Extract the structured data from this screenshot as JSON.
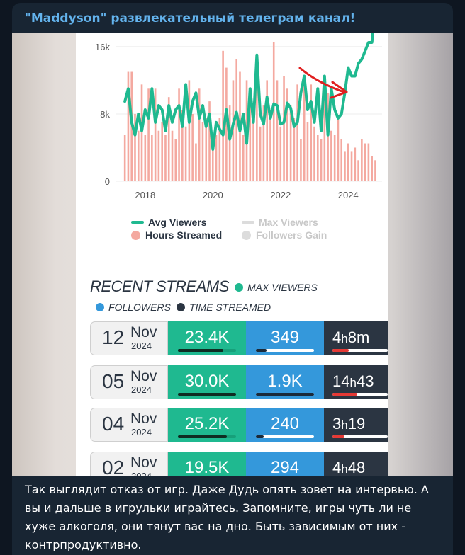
{
  "channel": {
    "title": "\"Maddyson\" развлекательный телеграм канал!"
  },
  "chart_data": {
    "type": "line",
    "title": "",
    "xlabel": "",
    "ylabel": "",
    "y_ticks": [
      "0",
      "8k",
      "16k"
    ],
    "x_ticks": [
      "2018",
      "2020",
      "2022",
      "2024"
    ],
    "ylim": [
      0,
      17000
    ],
    "xlim": [
      2017.25,
      2025.0
    ],
    "legend": {
      "avg_viewers": "Avg Viewers",
      "max_viewers": "Max Viewers",
      "hours_streamed": "Hours Streamed",
      "followers_gain": "Followers Gain"
    },
    "colors": {
      "avg_viewers": "#1fb990",
      "max_viewers": "#d9d9d9",
      "hours_streamed": "#f4a9a0",
      "followers_gain": "#d9d9d9",
      "arrow": "#e02020"
    },
    "series": [
      {
        "name": "Avg Viewers",
        "x": [
          2017.4,
          2017.5,
          2017.6,
          2017.7,
          2017.8,
          2017.9,
          2018.0,
          2018.1,
          2018.2,
          2018.3,
          2018.4,
          2018.5,
          2018.6,
          2018.7,
          2018.8,
          2018.9,
          2019.0,
          2019.1,
          2019.2,
          2019.3,
          2019.4,
          2019.5,
          2019.6,
          2019.7,
          2019.8,
          2019.9,
          2020.0,
          2020.1,
          2020.2,
          2020.3,
          2020.4,
          2020.5,
          2020.6,
          2020.7,
          2020.8,
          2020.9,
          2021.0,
          2021.1,
          2021.2,
          2021.3,
          2021.4,
          2021.5,
          2021.6,
          2021.7,
          2021.8,
          2021.9,
          2022.0,
          2022.1,
          2022.2,
          2022.3,
          2022.4,
          2022.5,
          2022.6,
          2022.7,
          2022.8,
          2022.9,
          2023.0,
          2023.1,
          2023.2,
          2023.3,
          2023.4,
          2023.5,
          2023.6,
          2023.7,
          2023.8,
          2023.9,
          2024.0,
          2024.1,
          2024.2,
          2024.3,
          2024.4,
          2024.5,
          2024.6,
          2024.7,
          2024.8
        ],
        "values": [
          9500,
          11000,
          7000,
          5500,
          8000,
          6000,
          8500,
          7500,
          11000,
          7000,
          9000,
          8500,
          6000,
          9000,
          7000,
          8500,
          9000,
          6500,
          11500,
          7000,
          9500,
          10500,
          7500,
          9000,
          6500,
          8000,
          3800,
          7000,
          6200,
          5500,
          8500,
          5000,
          6800,
          8200,
          6000,
          8000,
          4500,
          11000,
          7000,
          15000,
          8000,
          6800,
          10000,
          7500,
          9200,
          9000,
          6800,
          7000,
          9300,
          8700,
          6500,
          7000,
          10500,
          12500,
          8500,
          9500,
          7000,
          11000,
          6000,
          12500,
          5500,
          11000,
          8500,
          7500,
          8000,
          10500,
          13500,
          12500,
          12500,
          14000,
          14500,
          15500,
          16500,
          16500,
          20500
        ]
      },
      {
        "name": "Hours Streamed",
        "x": [
          2017.4,
          2017.5,
          2017.6,
          2017.7,
          2017.8,
          2017.9,
          2018.0,
          2018.1,
          2018.2,
          2018.3,
          2018.4,
          2018.5,
          2018.6,
          2018.7,
          2018.8,
          2018.9,
          2019.0,
          2019.1,
          2019.2,
          2019.3,
          2019.4,
          2019.5,
          2019.6,
          2019.7,
          2019.8,
          2019.9,
          2020.0,
          2020.1,
          2020.2,
          2020.3,
          2020.4,
          2020.5,
          2020.6,
          2020.7,
          2020.8,
          2020.9,
          2021.0,
          2021.1,
          2021.2,
          2021.3,
          2021.4,
          2021.5,
          2021.6,
          2021.7,
          2021.8,
          2021.9,
          2022.0,
          2022.1,
          2022.2,
          2022.3,
          2022.4,
          2022.5,
          2022.6,
          2022.7,
          2022.8,
          2022.9,
          2023.0,
          2023.1,
          2023.2,
          2023.3,
          2023.4,
          2023.5,
          2023.6,
          2023.7,
          2023.8,
          2023.9,
          2024.0,
          2024.1,
          2024.2,
          2024.3,
          2024.4,
          2024.5,
          2024.6,
          2024.7,
          2024.8
        ],
        "values": [
          5500,
          13000,
          13000,
          8000,
          6000,
          11500,
          5500,
          11000,
          5500,
          11000,
          6000,
          7000,
          5500,
          10000,
          6000,
          5000,
          11000,
          8500,
          6500,
          12000,
          8000,
          4500,
          11000,
          7000,
          7500,
          9500,
          5000,
          5500,
          7500,
          15500,
          13500,
          9000,
          12000,
          14500,
          13000,
          5500,
          12000,
          10000,
          8500,
          11500,
          6500,
          9000,
          12000,
          8500,
          16500,
          12000,
          6500,
          12500,
          11000,
          9000,
          7500,
          11500,
          5000,
          12000,
          7000,
          11500,
          6500,
          5500,
          5000,
          9500,
          10500,
          6000,
          5500,
          7500,
          5000,
          3500,
          4500,
          3500,
          4000,
          2500,
          5000,
          4500,
          4500,
          3000,
          2500
        ]
      }
    ],
    "arrow_annotation": "red hand-drawn arrow pointing at the 2024 rise"
  },
  "recent": {
    "title": "RECENT STREAMS",
    "legend": {
      "max_viewers": "MAX VIEWERS",
      "followers": "FOLLOWERS",
      "time_streamed": "TIME STREAMED"
    },
    "colors": {
      "max_viewers": "#1fb990",
      "followers": "#3498db",
      "time_streamed": "#2b3542"
    },
    "rows": [
      {
        "day": "12",
        "month": "Nov",
        "year": "2024",
        "max_viewers": "23.4K",
        "viewers_level": 0.78,
        "followers": "349",
        "followers_level": 0.18,
        "time_h": "4",
        "time_m": "8m",
        "time_level": 0.3
      },
      {
        "day": "05",
        "month": "Nov",
        "year": "2024",
        "max_viewers": "30.0K",
        "viewers_level": 1.0,
        "followers": "1.9K",
        "followers_level": 1.0,
        "time_h": "14",
        "time_m": "43",
        "time_level": 0.45
      },
      {
        "day": "04",
        "month": "Nov",
        "year": "2024",
        "max_viewers": "25.2K",
        "viewers_level": 0.84,
        "followers": "240",
        "followers_level": 0.14,
        "time_h": "3",
        "time_m": "19",
        "time_level": 0.22
      },
      {
        "day": "02",
        "month": "Nov",
        "year": "2024",
        "max_viewers": "19.5K",
        "viewers_level": 0.65,
        "followers": "294",
        "followers_level": 0.16,
        "time_h": "4",
        "time_m": "48",
        "time_level": 0.32
      }
    ]
  },
  "caption": "Так выглядит отказ от игр. Даже Дудь опять зовет на интервью. А вы и дальше в игрульки играйтесь. Запомните, игры чуть ли не хуже алкоголя, они тянут вас на дно. Быть зависимым от них - контрпродуктивно."
}
